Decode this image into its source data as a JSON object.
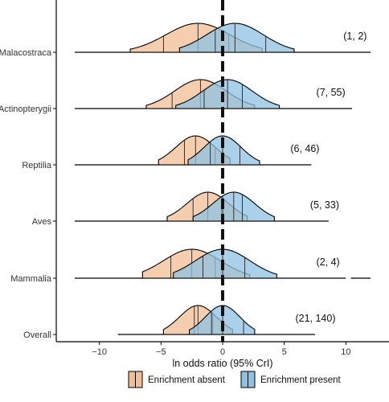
{
  "chart_data": {
    "type": "ridgeline-density",
    "xlabel": "ln odds ratio (95% CrI)",
    "ylabel": "",
    "xlim": [
      -13.5,
      13.5
    ],
    "x_ticks": [
      -10,
      -5,
      0,
      5,
      10
    ],
    "x_tick_labels": [
      "−10",
      "−5",
      "0",
      "5",
      "10"
    ],
    "reference_line_x": 0,
    "grid": false,
    "legend_position": "bottom",
    "legend": [
      {
        "label": "Enrichment absent",
        "color": "#F2BE96"
      },
      {
        "label": "Enrichment present",
        "color": "#8EC2E2"
      }
    ],
    "categories": [
      "Malacostraca",
      "Actinopterygii",
      "Reptilia",
      "Aves",
      "Mammalia",
      "Overall"
    ],
    "rows": [
      {
        "name": "Malacostraca",
        "count_label": "(1, 2)",
        "absent": {
          "mean": -2.0,
          "sd": 2.6,
          "ci": [
            -7.5,
            3.2
          ],
          "q": [
            -4.8,
            -2.0,
            0.5
          ]
        },
        "present": {
          "mean": 1.0,
          "sd": 2.3,
          "ci": [
            -3.5,
            5.8
          ],
          "q": [
            -0.6,
            1.0,
            3.5
          ]
        },
        "line_range": [
          -12.0,
          12.0
        ]
      },
      {
        "name": "Actinopterygii",
        "count_label": "(7, 55)",
        "absent": {
          "mean": -1.8,
          "sd": 2.1,
          "ci": [
            -6.2,
            2.6
          ],
          "q": [
            -4.1,
            -1.8,
            0.4
          ]
        },
        "present": {
          "mean": 0.4,
          "sd": 2.0,
          "ci": [
            -3.8,
            4.6
          ],
          "q": [
            -1.5,
            0.4,
            1.6
          ]
        },
        "line_range": [
          -12.0,
          10.5
        ]
      },
      {
        "name": "Reptilia",
        "count_label": "(6, 46)",
        "absent": {
          "mean": -2.2,
          "sd": 1.6,
          "ci": [
            -5.2,
            0.6
          ],
          "q": [
            -3.1,
            -2.2,
            -0.6
          ]
        },
        "present": {
          "mean": 0.0,
          "sd": 1.5,
          "ci": [
            -2.8,
            3.0
          ],
          "q": [
            -1.0,
            0.0,
            1.4
          ]
        },
        "line_range": [
          -12.0,
          7.2
        ]
      },
      {
        "name": "Aves",
        "count_label": "(5, 33)",
        "absent": {
          "mean": -1.2,
          "sd": 1.7,
          "ci": [
            -4.5,
            2.0
          ],
          "q": [
            -2.4,
            -1.2,
            -0.1
          ]
        },
        "present": {
          "mean": 0.9,
          "sd": 1.7,
          "ci": [
            -2.4,
            4.2
          ],
          "q": [
            0.0,
            0.9,
            1.6
          ]
        },
        "line_range": [
          -12.0,
          8.6
        ]
      },
      {
        "name": "Mammalia",
        "count_label": "(2, 4)",
        "absent": {
          "mean": -2.5,
          "sd": 2.3,
          "ci": [
            -6.5,
            2.2
          ],
          "q": [
            -4.2,
            -2.5,
            -0.6
          ]
        },
        "present": {
          "mean": 0.0,
          "sd": 2.2,
          "ci": [
            -4.0,
            4.4
          ],
          "q": [
            -1.6,
            0.0,
            1.8
          ]
        },
        "line_range": [
          -12.0,
          12.0
        ],
        "line_gap": [
          10.0,
          10.4
        ]
      },
      {
        "name": "Overall",
        "count_label": "(21, 140)",
        "absent": {
          "mean": -2.0,
          "sd": 1.5,
          "ci": [
            -4.8,
            0.8
          ],
          "q": [
            -2.3,
            -2.0,
            -0.8
          ]
        },
        "present": {
          "mean": 0.0,
          "sd": 1.4,
          "ci": [
            -2.7,
            2.6
          ],
          "q": [
            -0.9,
            0.0,
            1.7
          ]
        },
        "line_range": [
          -8.5,
          7.5
        ]
      }
    ]
  }
}
